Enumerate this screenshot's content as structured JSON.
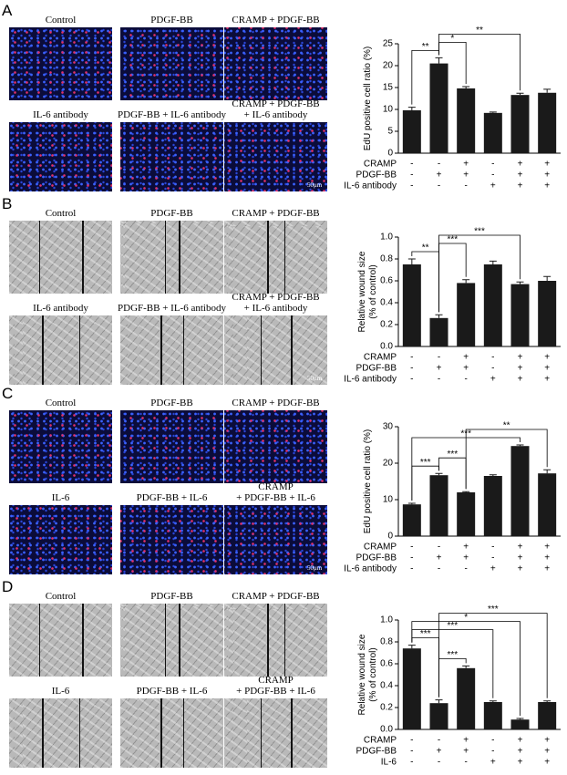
{
  "panels": [
    {
      "letter": "A",
      "image_labels": [
        "Control",
        "PDGF-BB",
        "CRAMP + PDGF-BB",
        "IL-6 antibody",
        "PDGF-BB + IL-6 antibody",
        "CRAMP + PDGF-BB\n+ IL-6 antibody"
      ],
      "scale_bar": "50μm"
    },
    {
      "letter": "B",
      "image_labels": [
        "Control",
        "PDGF-BB",
        "CRAMP + PDGF-BB",
        "IL-6 antibody",
        "PDGF-BB + IL-6 antibody",
        "CRAMP + PDGF-BB\n+ IL-6 antibody"
      ],
      "scale_bar": "50μm"
    },
    {
      "letter": "C",
      "image_labels": [
        "Control",
        "PDGF-BB",
        "CRAMP + PDGF-BB",
        "IL-6",
        "PDGF-BB + IL-6",
        "CRAMP\n+ PDGF-BB + IL-6"
      ],
      "scale_bar": "50μm"
    },
    {
      "letter": "D",
      "image_labels": [
        "Control",
        "PDGF-BB",
        "CRAMP + PDGF-BB",
        "IL-6",
        "PDGF-BB + IL-6",
        "CRAMP\n+ PDGF-BB + IL-6"
      ]
    }
  ],
  "chart_data": [
    {
      "type": "bar",
      "ylabel": "EdU positive cell ratio (%)",
      "color": "#1a1a1a",
      "values": [
        9.8,
        20.5,
        14.8,
        9.2,
        13.3,
        13.8
      ],
      "errors": [
        0.7,
        1.3,
        0.4,
        0.2,
        0.4,
        0.8
      ],
      "ylim": [
        0,
        25
      ],
      "yticks": [
        0,
        5,
        10,
        15,
        20,
        25
      ],
      "significance": [
        {
          "from": 0,
          "to": 1,
          "label": "**"
        },
        {
          "from": 1,
          "to": 2,
          "label": "*"
        },
        {
          "from": 1,
          "to": 4,
          "label": "**"
        }
      ],
      "conditions": [
        {
          "name": "CRAMP",
          "marks": [
            "-",
            "-",
            "+",
            "-",
            "+",
            "+"
          ]
        },
        {
          "name": "PDGF-BB",
          "marks": [
            "-",
            "+",
            "+",
            "-",
            "+",
            "+"
          ]
        },
        {
          "name": "IL-6 antibody",
          "marks": [
            "-",
            "-",
            "-",
            "+",
            "+",
            "+"
          ]
        }
      ]
    },
    {
      "type": "bar",
      "ylabel": "Relative wound size\n(% of control)",
      "color": "#1a1a1a",
      "values": [
        0.75,
        0.26,
        0.58,
        0.75,
        0.57,
        0.6
      ],
      "errors": [
        0.05,
        0.03,
        0.03,
        0.03,
        0.02,
        0.04
      ],
      "ylim": [
        0,
        1
      ],
      "yticks": [
        {
          "value": 0,
          "label": "0.0"
        },
        0.2,
        0.4,
        0.6,
        0.8,
        {
          "value": 1,
          "label": "1.0"
        }
      ],
      "significance": [
        {
          "from": 0,
          "to": 1,
          "label": "**"
        },
        {
          "from": 1,
          "to": 2,
          "label": "***"
        },
        {
          "from": 1,
          "to": 4,
          "label": "***"
        }
      ],
      "conditions": [
        {
          "name": "CRAMP",
          "marks": [
            "-",
            "-",
            "+",
            "-",
            "+",
            "+"
          ]
        },
        {
          "name": "PDGF-BB",
          "marks": [
            "-",
            "+",
            "+",
            "-",
            "+",
            "+"
          ]
        },
        {
          "name": "IL-6 antibody",
          "marks": [
            "-",
            "-",
            "-",
            "+",
            "+",
            "+"
          ]
        }
      ]
    },
    {
      "type": "bar",
      "ylabel": "EdU positive cell ratio (%)",
      "color": "#1a1a1a",
      "values": [
        8.7,
        16.7,
        12.0,
        16.5,
        24.7,
        17.2
      ],
      "errors": [
        0.3,
        0.5,
        0.2,
        0.3,
        0.3,
        1.0
      ],
      "ylim": [
        0,
        30
      ],
      "yticks": [
        0,
        10,
        20,
        30
      ],
      "significance": [
        {
          "from": 0,
          "to": 1,
          "label": "***"
        },
        {
          "from": 1,
          "to": 2,
          "label": "***"
        },
        {
          "from": 0,
          "to": 4,
          "label": "***"
        },
        {
          "from": 2,
          "to": 5,
          "label": "**"
        }
      ],
      "conditions": [
        {
          "name": "CRAMP",
          "marks": [
            "-",
            "-",
            "+",
            "-",
            "+",
            "+"
          ]
        },
        {
          "name": "PDGF-BB",
          "marks": [
            "-",
            "+",
            "+",
            "-",
            "+",
            "+"
          ]
        },
        {
          "name": "IL-6 antibody",
          "marks": [
            "-",
            "-",
            "-",
            "+",
            "+",
            "+"
          ]
        }
      ]
    },
    {
      "type": "bar",
      "ylabel": "Relative wound size\n(% of control)",
      "color": "#1a1a1a",
      "values": [
        0.74,
        0.24,
        0.56,
        0.25,
        0.09,
        0.25
      ],
      "errors": [
        0.03,
        0.03,
        0.02,
        0.01,
        0.01,
        0.01
      ],
      "ylim": [
        0,
        1
      ],
      "yticks": [
        {
          "value": 0,
          "label": "0.0"
        },
        0.2,
        0.4,
        0.6,
        0.8,
        {
          "value": 1,
          "label": "1.0"
        }
      ],
      "significance": [
        {
          "from": 1,
          "to": 2,
          "label": "***"
        },
        {
          "from": 0,
          "to": 1,
          "label": "***"
        },
        {
          "from": 0,
          "to": 3,
          "label": "***"
        },
        {
          "from": 0,
          "to": 4,
          "label": "*"
        },
        {
          "from": 1,
          "to": 5,
          "label": "***"
        }
      ],
      "conditions": [
        {
          "name": "CRAMP",
          "marks": [
            "-",
            "-",
            "+",
            "-",
            "+",
            "+"
          ]
        },
        {
          "name": "PDGF-BB",
          "marks": [
            "-",
            "+",
            "+",
            "-",
            "+",
            "+"
          ]
        },
        {
          "name": "IL-6",
          "marks": [
            "-",
            "-",
            "-",
            "+",
            "+",
            "+"
          ]
        }
      ]
    }
  ]
}
